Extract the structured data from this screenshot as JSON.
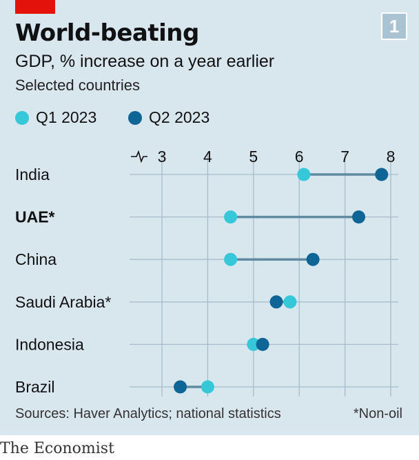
{
  "header": {
    "title": "World-beating",
    "badge": "1",
    "subtitle": "GDP, % increase on a year earlier",
    "note": "Selected countries"
  },
  "colors": {
    "accent": "#e3120b",
    "q1": "#36c8d9",
    "q2": "#0f6696",
    "connector": "#5f8aa0",
    "gridline": "#a7bccb",
    "background": "#d8e6ee"
  },
  "legend": [
    {
      "label": "Q1 2023",
      "color": "#36c8d9"
    },
    {
      "label": "Q2 2023",
      "color": "#0f6696"
    }
  ],
  "chart_data": {
    "type": "dot-plot",
    "xticks": [
      3,
      4,
      5,
      6,
      7,
      8
    ],
    "xlim": [
      2.3,
      8.0
    ],
    "axis_break": true,
    "grid": true,
    "categories": [
      {
        "name": "India",
        "bold": false
      },
      {
        "name": "UAE*",
        "bold": true
      },
      {
        "name": "China",
        "bold": false
      },
      {
        "name": "Saudi Arabia*",
        "bold": false
      },
      {
        "name": "Indonesia",
        "bold": false
      },
      {
        "name": "Brazil",
        "bold": false
      }
    ],
    "series": [
      {
        "name": "Q1 2023",
        "values": [
          6.1,
          4.5,
          4.5,
          5.8,
          5.0,
          4.0
        ]
      },
      {
        "name": "Q2 2023",
        "values": [
          7.8,
          7.3,
          6.3,
          5.5,
          5.2,
          3.4
        ]
      }
    ]
  },
  "footer": {
    "sources": "Sources: Haver Analytics; national statistics",
    "footnote": "*Non-oil",
    "brand": "The Economist"
  }
}
